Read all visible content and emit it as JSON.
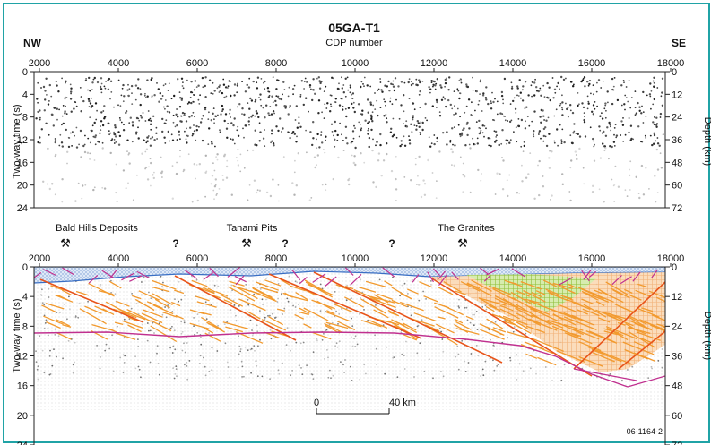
{
  "title": "05GA-T1",
  "subtitle": "CDP number",
  "left_direction": "NW",
  "right_direction": "SE",
  "x_ticks": [
    "2000",
    "4000",
    "6000",
    "8000",
    "10000",
    "12000",
    "14000",
    "16000",
    "18000"
  ],
  "left_axis_label": "Two-way time (s)",
  "left_ticks": [
    "0",
    "4",
    "8",
    "12",
    "16",
    "20",
    "24"
  ],
  "right_axis_label": "Depth (km)",
  "right_ticks": [
    "0",
    "12",
    "24",
    "36",
    "48",
    "60",
    "72"
  ],
  "locations": [
    {
      "label": "Bald Hills Deposits",
      "symbol": "⚒"
    },
    {
      "label": "?"
    },
    {
      "label": "Tanami Pits",
      "symbol": "⚒"
    },
    {
      "label": "?"
    },
    {
      "label": "?"
    },
    {
      "label": "The Granites",
      "symbol": "⚒"
    }
  ],
  "scale_bar": {
    "start": "0",
    "end": "40 km"
  },
  "figure_id": "06-1164-2",
  "colors": {
    "frame": "#20a3a6",
    "fault": "#e8541a",
    "reflector": "#f29a2e",
    "moho": "#c0308f",
    "sed": "#3a6fc4",
    "green": "#8fbf3a",
    "peach": "#f7c69a"
  }
}
